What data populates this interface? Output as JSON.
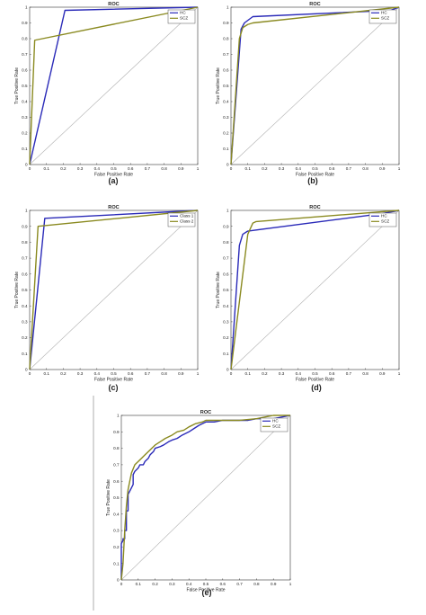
{
  "figure": {
    "divider_color": "#9a9a9a",
    "series_colors": [
      "#2a2ab8",
      "#8a8a20"
    ]
  },
  "chart_data": [
    {
      "panel": "a",
      "caption": "(a)",
      "type": "line",
      "title": "ROC",
      "xlabel": "False Positive Rate",
      "ylabel": "True Positive Rate",
      "xlim": [
        0,
        1
      ],
      "ylim": [
        0,
        1
      ],
      "xticks": [
        "0",
        "0.1",
        "0.2",
        "0.3",
        "0.4",
        "0.5",
        "0.6",
        "0.7",
        "0.8",
        "0.9",
        "1"
      ],
      "yticks": [
        "0",
        "0.1",
        "0.2",
        "0.3",
        "0.4",
        "0.5",
        "0.6",
        "0.7",
        "0.8",
        "0.9",
        "1"
      ],
      "legend_position": "top-right",
      "grid": false,
      "diagonal": true,
      "series": [
        {
          "name": "HC",
          "color": "#2a2ab8",
          "x": [
            0,
            0.21,
            1
          ],
          "y": [
            0,
            0.98,
            1
          ]
        },
        {
          "name": "SCZ",
          "color": "#8a8a20",
          "x": [
            0,
            0.03,
            1
          ],
          "y": [
            0,
            0.79,
            1
          ]
        }
      ]
    },
    {
      "panel": "b",
      "caption": "(b)",
      "type": "line",
      "title": "ROC",
      "xlabel": "False Positive Rate",
      "ylabel": "True Positive Rate",
      "xlim": [
        0,
        1
      ],
      "ylim": [
        0,
        1
      ],
      "xticks": [
        "0",
        "0.1",
        "0.2",
        "0.3",
        "0.4",
        "0.5",
        "0.6",
        "0.7",
        "0.8",
        "0.9",
        "1"
      ],
      "yticks": [
        "0",
        "0.1",
        "0.2",
        "0.3",
        "0.4",
        "0.5",
        "0.6",
        "0.7",
        "0.8",
        "0.9",
        "1"
      ],
      "legend_position": "top-right",
      "grid": false,
      "diagonal": true,
      "series": [
        {
          "name": "HC",
          "color": "#2a2ab8",
          "x": [
            0,
            0.06,
            0.08,
            0.13,
            0.95,
            1
          ],
          "y": [
            0,
            0.86,
            0.9,
            0.94,
            0.98,
            1
          ]
        },
        {
          "name": "SCZ",
          "color": "#8a8a20",
          "x": [
            0,
            0.05,
            0.07,
            0.1,
            0.13,
            1
          ],
          "y": [
            0,
            0.8,
            0.87,
            0.89,
            0.9,
            1
          ]
        }
      ]
    },
    {
      "panel": "c",
      "caption": "(c)",
      "type": "line",
      "title": "ROC",
      "xlabel": "False Positive Rate",
      "ylabel": "True Positive Rate",
      "xlim": [
        0,
        1
      ],
      "ylim": [
        0,
        1
      ],
      "xticks": [
        "0",
        "0.1",
        "0.2",
        "0.3",
        "0.4",
        "0.5",
        "0.6",
        "0.7",
        "0.8",
        "0.9",
        "1"
      ],
      "yticks": [
        "0",
        "0.1",
        "0.2",
        "0.3",
        "0.4",
        "0.5",
        "0.6",
        "0.7",
        "0.8",
        "0.9",
        "1"
      ],
      "legend_position": "top-right",
      "grid": false,
      "diagonal": true,
      "series": [
        {
          "name": "Class 1",
          "color": "#2a2ab8",
          "x": [
            0,
            0.09,
            1
          ],
          "y": [
            0,
            0.95,
            1
          ]
        },
        {
          "name": "Class 2",
          "color": "#8a8a20",
          "x": [
            0,
            0.05,
            1
          ],
          "y": [
            0,
            0.9,
            1
          ]
        }
      ]
    },
    {
      "panel": "d",
      "caption": "(d)",
      "type": "line",
      "title": "ROC",
      "xlabel": "False Positive Rate",
      "ylabel": "True Positive Rate",
      "xlim": [
        0,
        1
      ],
      "ylim": [
        0,
        1
      ],
      "xticks": [
        "0",
        "0.1",
        "0.2",
        "0.3",
        "0.4",
        "0.5",
        "0.6",
        "0.7",
        "0.8",
        "0.9",
        "1"
      ],
      "yticks": [
        "0",
        "0.1",
        "0.2",
        "0.3",
        "0.4",
        "0.5",
        "0.6",
        "0.7",
        "0.8",
        "0.9",
        "1"
      ],
      "legend_position": "top-right",
      "grid": false,
      "diagonal": true,
      "series": [
        {
          "name": "HC",
          "color": "#2a2ab8",
          "x": [
            0,
            0.05,
            0.07,
            0.1,
            0.9,
            1
          ],
          "y": [
            0,
            0.78,
            0.85,
            0.87,
            0.98,
            1
          ]
        },
        {
          "name": "SCZ",
          "color": "#8a8a20",
          "x": [
            0,
            0.1,
            0.13,
            0.15,
            1
          ],
          "y": [
            0,
            0.85,
            0.92,
            0.93,
            1
          ]
        }
      ]
    },
    {
      "panel": "e",
      "caption": "(e)",
      "type": "line",
      "title": "ROC",
      "xlabel": "False Positive Rate",
      "ylabel": "True Positive Rate",
      "xlim": [
        0,
        1
      ],
      "ylim": [
        0,
        1
      ],
      "xticks": [
        "0",
        "0.1",
        "0.2",
        "0.3",
        "0.4",
        "0.5",
        "0.6",
        "0.7",
        "0.8",
        "0.9",
        "1"
      ],
      "yticks": [
        "0",
        "0.1",
        "0.2",
        "0.3",
        "0.4",
        "0.5",
        "0.6",
        "0.7",
        "0.8",
        "0.9",
        "1"
      ],
      "legend_position": "top-right",
      "grid": false,
      "diagonal": true,
      "series": [
        {
          "name": "HC",
          "color": "#2a2ab8",
          "x": [
            0,
            0.0,
            0.01,
            0.01,
            0.02,
            0.02,
            0.03,
            0.03,
            0.04,
            0.04,
            0.05,
            0.06,
            0.07,
            0.07,
            0.08,
            0.1,
            0.11,
            0.13,
            0.14,
            0.16,
            0.17,
            0.19,
            0.2,
            0.23,
            0.25,
            0.28,
            0.3,
            0.33,
            0.36,
            0.4,
            0.43,
            0.46,
            0.5,
            0.55,
            0.6,
            0.65,
            0.7,
            0.75,
            0.8,
            0.85,
            0.9,
            0.95,
            1
          ],
          "y": [
            0,
            0.22,
            0.24,
            0.25,
            0.25,
            0.3,
            0.3,
            0.42,
            0.42,
            0.52,
            0.54,
            0.56,
            0.58,
            0.64,
            0.66,
            0.68,
            0.7,
            0.7,
            0.72,
            0.74,
            0.76,
            0.78,
            0.8,
            0.81,
            0.82,
            0.84,
            0.85,
            0.86,
            0.88,
            0.9,
            0.92,
            0.94,
            0.96,
            0.96,
            0.97,
            0.97,
            0.97,
            0.97,
            0.98,
            0.98,
            0.98,
            0.99,
            1
          ]
        },
        {
          "name": "SCZ",
          "color": "#8a8a20",
          "x": [
            0,
            0.01,
            0.02,
            0.03,
            0.04,
            0.05,
            0.06,
            0.08,
            0.1,
            0.12,
            0.14,
            0.16,
            0.18,
            0.2,
            0.23,
            0.26,
            0.3,
            0.33,
            0.37,
            0.4,
            0.44,
            0.48,
            0.5,
            0.6,
            0.7,
            0.8,
            0.85,
            0.9,
            1
          ],
          "y": [
            0,
            0.1,
            0.3,
            0.45,
            0.55,
            0.6,
            0.65,
            0.7,
            0.72,
            0.74,
            0.76,
            0.78,
            0.8,
            0.82,
            0.84,
            0.86,
            0.88,
            0.9,
            0.91,
            0.93,
            0.95,
            0.96,
            0.97,
            0.97,
            0.97,
            0.98,
            0.99,
            1,
            1
          ]
        }
      ]
    }
  ]
}
